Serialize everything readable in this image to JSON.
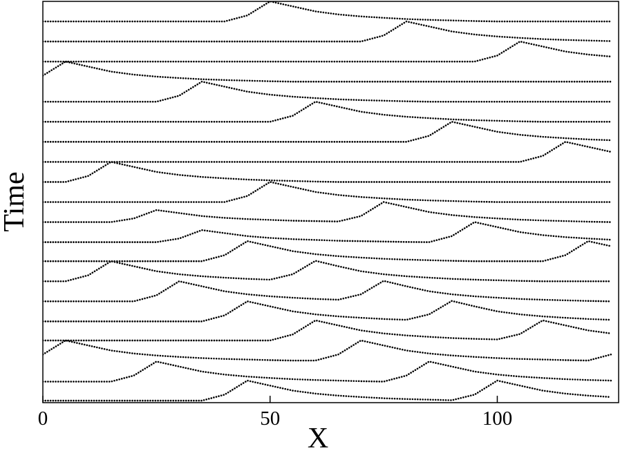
{
  "chart_data": {
    "type": "line",
    "xlabel": "X",
    "ylabel": "Time",
    "color": "#000000",
    "x": [
      0,
      5,
      10,
      15,
      20,
      25,
      30,
      35,
      40,
      45,
      50,
      55,
      60,
      65,
      70,
      75,
      80,
      85,
      90,
      95,
      100,
      105,
      110,
      115,
      120,
      125
    ],
    "xlim": [
      0,
      126.7
    ],
    "xticks": [
      0,
      50,
      100
    ],
    "ylim": [
      0,
      20
    ],
    "series": [
      {
        "values": [
          0.1,
          0.1,
          0.1,
          0.1,
          0.1,
          0.1,
          0.1,
          0.1,
          0.4,
          1.1,
          0.85,
          0.6,
          0.45,
          0.35,
          0.28,
          0.22,
          0.18,
          0.15,
          0.12,
          0.4,
          1.1,
          0.85,
          0.6,
          0.45,
          0.35,
          0.28
        ]
      },
      {
        "values": [
          1.05,
          1.05,
          1.05,
          1.05,
          1.35,
          2.05,
          1.8,
          1.55,
          1.4,
          1.3,
          1.23,
          1.17,
          1.13,
          1.1,
          1.07,
          1.05,
          1.35,
          2.05,
          1.8,
          1.55,
          1.4,
          1.3,
          1.23,
          1.17,
          1.13,
          1.1
        ]
      },
      {
        "values": [
          2.4,
          3.1,
          2.85,
          2.6,
          2.45,
          2.35,
          2.28,
          2.22,
          2.18,
          2.15,
          2.12,
          2.1,
          2.1,
          2.4,
          3.1,
          2.85,
          2.6,
          2.45,
          2.35,
          2.28,
          2.22,
          2.18,
          2.15,
          2.12,
          2.1,
          2.4
        ]
      },
      {
        "values": [
          3.1,
          3.1,
          3.1,
          3.1,
          3.1,
          3.1,
          3.1,
          3.1,
          3.1,
          3.1,
          3.1,
          3.4,
          4.1,
          3.85,
          3.6,
          3.45,
          3.35,
          3.28,
          3.22,
          3.18,
          3.15,
          3.42,
          4.1,
          3.85,
          3.6,
          3.45
        ]
      },
      {
        "values": [
          4.05,
          4.05,
          4.05,
          4.05,
          4.05,
          4.05,
          4.05,
          4.05,
          4.35,
          5.05,
          4.8,
          4.55,
          4.4,
          4.3,
          4.23,
          4.17,
          4.13,
          4.4,
          5.07,
          4.8,
          4.55,
          4.4,
          4.3,
          4.23,
          4.17,
          4.13
        ]
      },
      {
        "values": [
          5.05,
          5.05,
          5.05,
          5.05,
          5.05,
          5.35,
          6.05,
          5.8,
          5.55,
          5.4,
          5.3,
          5.23,
          5.17,
          5.13,
          5.4,
          6.07,
          5.8,
          5.55,
          5.4,
          5.3,
          5.23,
          5.17,
          5.13,
          5.1,
          5.07,
          5.05
        ]
      },
      {
        "values": [
          6.05,
          6.05,
          6.35,
          7.05,
          6.8,
          6.55,
          6.4,
          6.3,
          6.23,
          6.17,
          6.13,
          6.4,
          7.07,
          6.8,
          6.55,
          6.4,
          6.3,
          6.23,
          6.17,
          6.13,
          6.1,
          6.07,
          6.05,
          6.05,
          6.05,
          6.05
        ]
      },
      {
        "values": [
          7.05,
          7.05,
          7.05,
          7.05,
          7.05,
          7.05,
          7.05,
          7.05,
          7.35,
          8.05,
          7.8,
          7.55,
          7.4,
          7.3,
          7.23,
          7.17,
          7.13,
          7.1,
          7.07,
          7.05,
          7.05,
          7.05,
          7.05,
          7.35,
          8.05,
          7.8
        ]
      },
      {
        "values": [
          8,
          8,
          8,
          8,
          8,
          8,
          8.18,
          8.6,
          8.45,
          8.3,
          8.21,
          8.15,
          8.11,
          8.07,
          8.05,
          8.03,
          8.01,
          8,
          8.3,
          9,
          8.75,
          8.5,
          8.35,
          8.25,
          8.18,
          8.12
        ]
      },
      {
        "values": [
          9,
          9,
          9,
          9,
          9.18,
          9.6,
          9.45,
          9.3,
          9.21,
          9.15,
          9.11,
          9.07,
          9.05,
          9.03,
          9.3,
          10,
          9.75,
          9.5,
          9.35,
          9.25,
          9.18,
          9.12,
          9.08,
          9.05,
          9.02,
          9
        ]
      },
      {
        "values": [
          10,
          10,
          10,
          10,
          10,
          10,
          10,
          10,
          10,
          10.3,
          11,
          10.75,
          10.5,
          10.35,
          10.25,
          10.18,
          10.12,
          10.08,
          10.05,
          10.02,
          10,
          10,
          10,
          10,
          10,
          10
        ]
      },
      {
        "values": [
          11,
          11,
          11.3,
          12,
          11.75,
          11.5,
          11.35,
          11.25,
          11.18,
          11.12,
          11.08,
          11.05,
          11.02,
          11,
          11,
          11,
          11,
          11,
          11,
          11,
          11,
          11,
          11,
          11,
          11,
          11
        ]
      },
      {
        "values": [
          12,
          12,
          12,
          12,
          12,
          12,
          12,
          12,
          12,
          12,
          12,
          12,
          12,
          12,
          12,
          12,
          12,
          12,
          12,
          12,
          12,
          12,
          12.3,
          13,
          12.75,
          12.5
        ]
      },
      {
        "values": [
          13,
          13,
          13,
          13,
          13,
          13,
          13,
          13,
          13,
          13,
          13,
          13,
          13,
          13,
          13,
          13,
          13,
          13.3,
          14,
          13.75,
          13.5,
          13.35,
          13.25,
          13.18,
          13.12,
          13.08
        ]
      },
      {
        "values": [
          14,
          14,
          14,
          14,
          14,
          14,
          14,
          14,
          14,
          14,
          14,
          14.3,
          15,
          14.75,
          14.5,
          14.35,
          14.25,
          14.18,
          14.12,
          14.08,
          14.05,
          14.02,
          14,
          14,
          14,
          14
        ]
      },
      {
        "values": [
          15,
          15,
          15,
          15,
          15,
          15,
          15.3,
          16,
          15.75,
          15.5,
          15.35,
          15.25,
          15.18,
          15.12,
          15.08,
          15.05,
          15.02,
          15,
          15,
          15,
          15,
          15,
          15,
          15,
          15,
          15
        ]
      },
      {
        "values": [
          16.3,
          17,
          16.75,
          16.5,
          16.35,
          16.25,
          16.18,
          16.12,
          16.08,
          16.05,
          16.02,
          16,
          16,
          16,
          16,
          16,
          16,
          16,
          16,
          16,
          16,
          16,
          16,
          16,
          16,
          16
        ]
      },
      {
        "values": [
          17,
          17,
          17,
          17,
          17,
          17,
          17,
          17,
          17,
          17,
          17,
          17,
          17,
          17,
          17,
          17,
          17,
          17,
          17,
          17,
          17.3,
          18,
          17.75,
          17.5,
          17.35,
          17.25
        ]
      },
      {
        "values": [
          18,
          18,
          18,
          18,
          18,
          18,
          18,
          18,
          18,
          18,
          18,
          18,
          18,
          18,
          18,
          18.3,
          19,
          18.75,
          18.5,
          18.35,
          18.25,
          18.18,
          18.12,
          18.08,
          18.05,
          18.02
        ]
      },
      {
        "values": [
          19,
          19,
          19,
          19,
          19,
          19,
          19,
          19,
          19,
          19.3,
          20,
          19.75,
          19.5,
          19.35,
          19.25,
          19.18,
          19.12,
          19.08,
          19.05,
          19.02,
          19,
          19,
          19,
          19,
          19,
          19
        ]
      }
    ]
  }
}
